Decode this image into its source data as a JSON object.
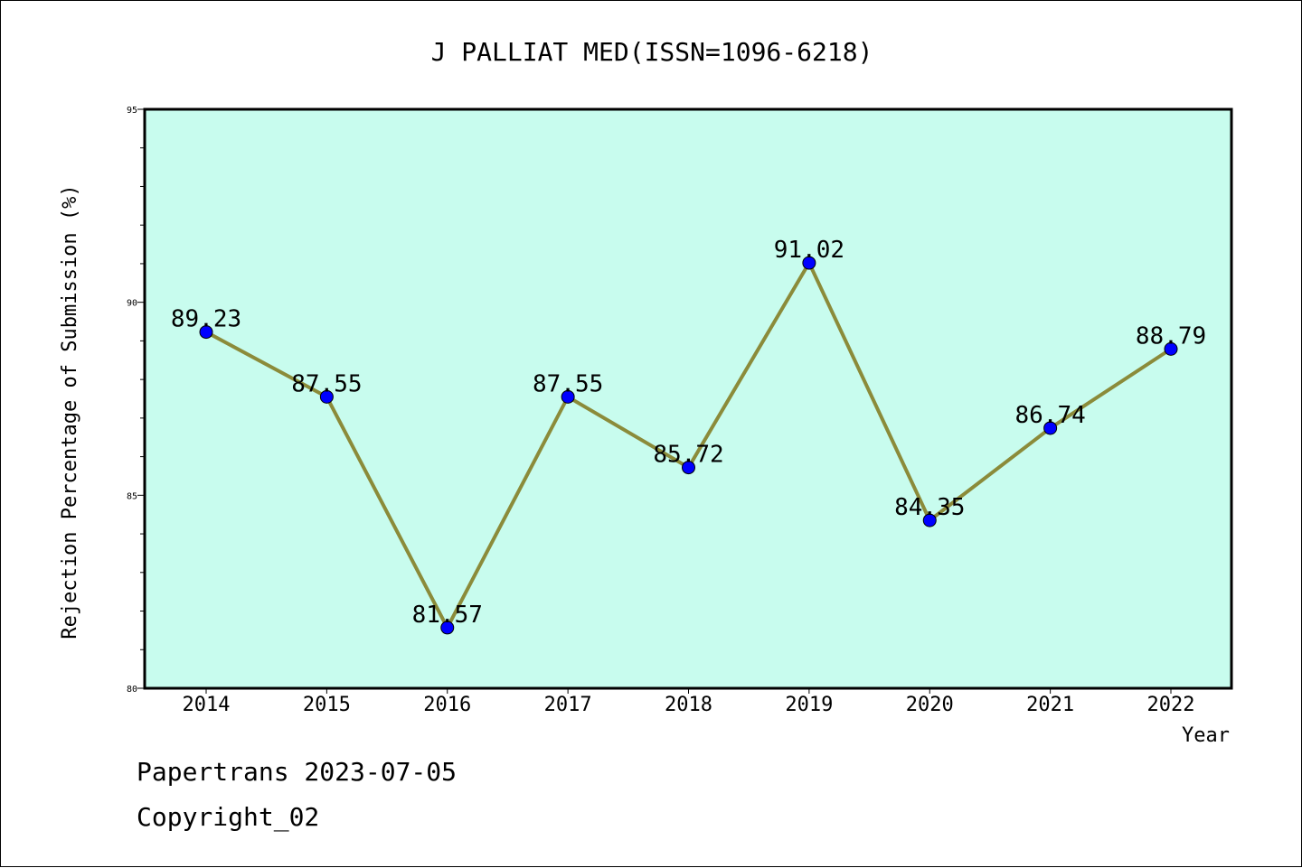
{
  "chart_data": {
    "type": "line",
    "title": "J PALLIAT MED(ISSN=1096-6218)",
    "xlabel": "Year",
    "ylabel": "Rejection Percentage of Submission (%)",
    "categories": [
      "2014",
      "2015",
      "2016",
      "2017",
      "2018",
      "2019",
      "2020",
      "2021",
      "2022"
    ],
    "values": [
      89.23,
      87.55,
      81.57,
      87.55,
      85.72,
      91.02,
      84.35,
      86.74,
      88.79
    ],
    "data_labels": [
      "89.23",
      "87.55",
      "81.57",
      "87.55",
      "85.72",
      "91.02",
      "84.35",
      "86.74",
      "88.79"
    ],
    "ylim": [
      80,
      95
    ],
    "yticks": [
      "80",
      "85",
      "90",
      "95"
    ],
    "grid": false,
    "colors": {
      "plot_background": "#c8fcee",
      "line": "#8b8b3a",
      "marker": "#0000ff"
    }
  },
  "footer": {
    "line1": "Papertrans 2023-07-05",
    "line2": "Copyright_02"
  }
}
